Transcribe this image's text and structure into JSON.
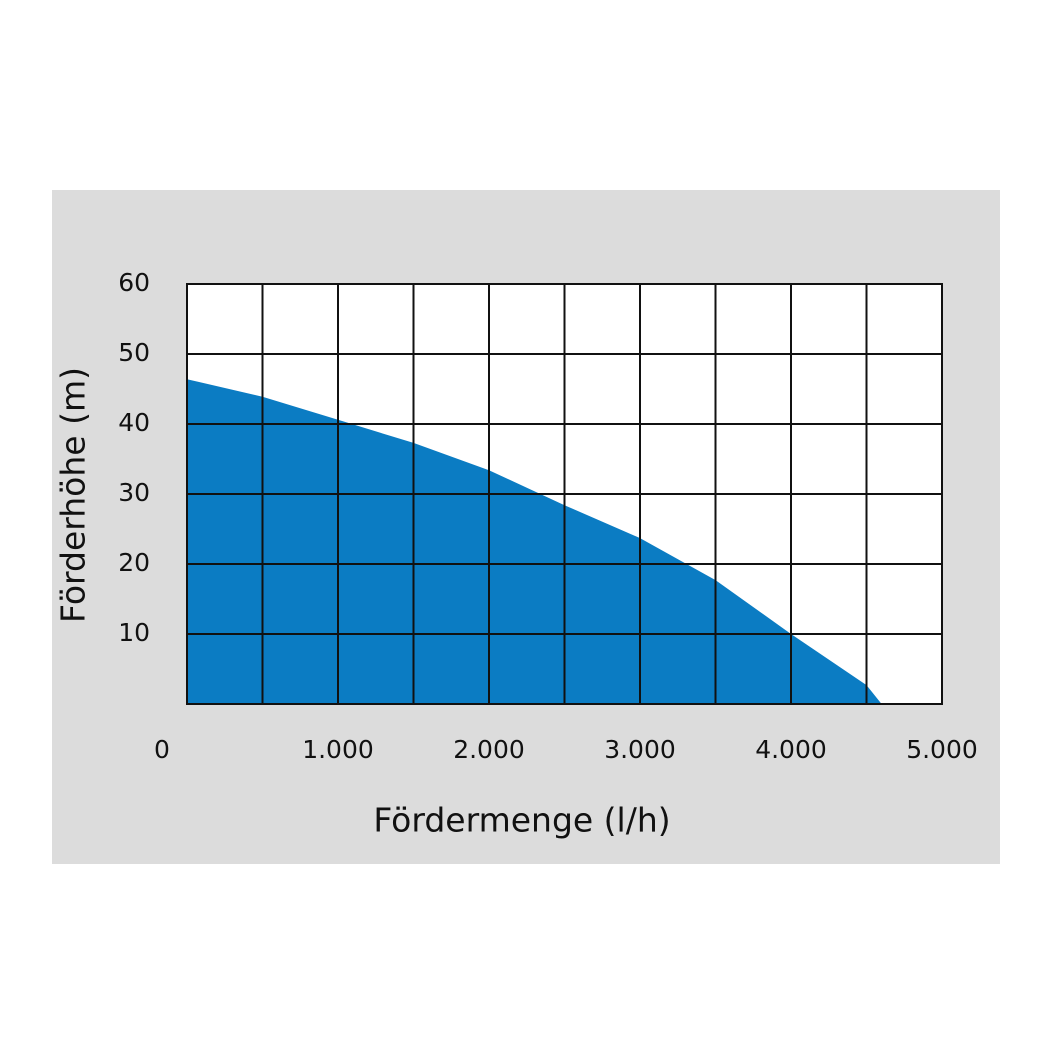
{
  "chart_data": {
    "type": "area",
    "x_label": "Fördermenge (l/h)",
    "y_label": "Förderhöhe (m)",
    "x": [
      0,
      500,
      1000,
      1500,
      2000,
      2500,
      3000,
      3500,
      4000,
      4500,
      4600
    ],
    "values": [
      46.4,
      43.9,
      40.6,
      37.3,
      33.4,
      28.4,
      23.7,
      17.7,
      10,
      2.7,
      0
    ],
    "color": "#0b7cc3",
    "xlim": [
      0,
      5000
    ],
    "xticks": [
      0,
      {
        "value": 1000,
        "label": "1.000"
      },
      {
        "value": 2000,
        "label": "2.000"
      },
      {
        "value": 3000,
        "label": "3.000"
      },
      {
        "value": 4000,
        "label": "4.000"
      },
      {
        "value": 5000,
        "label": "5.000"
      }
    ],
    "xgrid": [
      0,
      500,
      1000,
      1500,
      2000,
      2500,
      3000,
      3500,
      4000,
      4500,
      5000
    ],
    "ylim": [
      0,
      60
    ],
    "yticks": [
      10,
      20,
      30,
      40,
      50,
      60
    ],
    "grid": true
  }
}
